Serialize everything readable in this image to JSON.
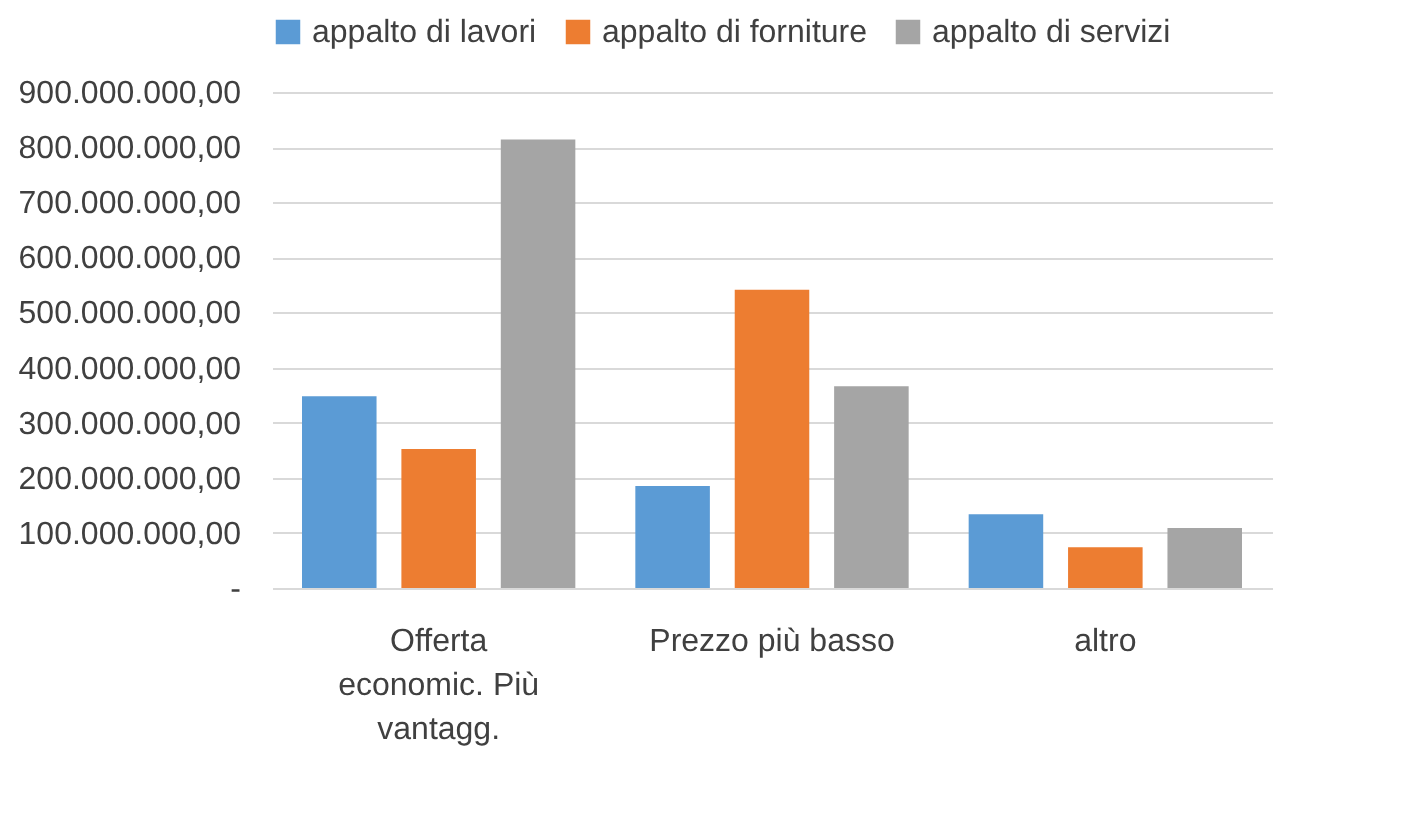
{
  "chart_data": {
    "type": "bar",
    "categories": [
      "Offerta economic. Più vantagg.",
      "Prezzo più basso",
      "altro"
    ],
    "series": [
      {
        "name": "appalto di lavori",
        "color": "#5b9bd5",
        "values": [
          348000000,
          185000000,
          134000000
        ]
      },
      {
        "name": "appalto di forniture",
        "color": "#ed7d31",
        "values": [
          252000000,
          541000000,
          74000000
        ]
      },
      {
        "name": "appalto di servizi",
        "color": "#a5a5a5",
        "values": [
          814000000,
          366000000,
          109000000
        ]
      }
    ],
    "ylim": [
      0,
      900000000
    ],
    "yticks": [
      {
        "value": 0,
        "label": "-"
      },
      {
        "value": 100000000,
        "label": "100.000.000,00"
      },
      {
        "value": 200000000,
        "label": "200.000.000,00"
      },
      {
        "value": 300000000,
        "label": "300.000.000,00"
      },
      {
        "value": 400000000,
        "label": "400.000.000,00"
      },
      {
        "value": 500000000,
        "label": "500.000.000,00"
      },
      {
        "value": 600000000,
        "label": "600.000.000,00"
      },
      {
        "value": 700000000,
        "label": "700.000.000,00"
      },
      {
        "value": 800000000,
        "label": "800.000.000,00"
      },
      {
        "value": 900000000,
        "label": "900.000.000,00"
      }
    ],
    "grid": "y",
    "legend": "top"
  }
}
